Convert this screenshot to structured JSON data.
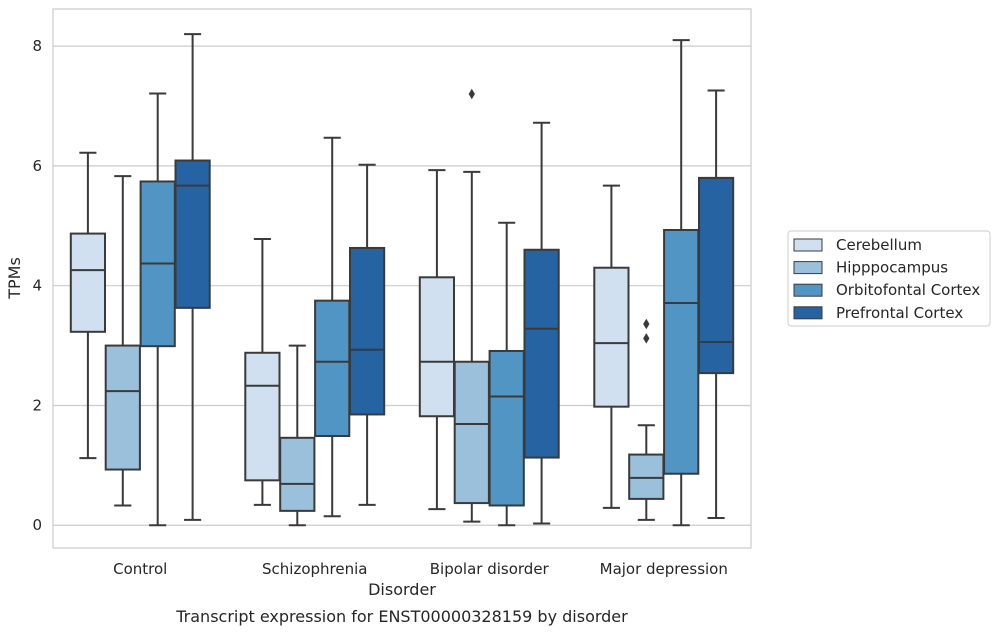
{
  "chart_data": {
    "type": "box",
    "title": "",
    "caption": "Transcript expression for ENST00000328159 by disorder",
    "xlabel": "Disorder",
    "ylabel": "TPMs",
    "ylim": [
      -0.38,
      8.62
    ],
    "yticks": [
      0,
      2,
      4,
      6,
      8
    ],
    "grid": "horizontal",
    "legend_position": "right",
    "categories": [
      "Control",
      "Schizophrenia",
      "Bipolar disorder",
      "Major depression"
    ],
    "series": [
      {
        "name": "Cerebellum",
        "color": "#d0e0f0",
        "boxes": [
          {
            "whisker_low": 1.12,
            "q1": 3.23,
            "median": 4.26,
            "q3": 4.87,
            "whisker_high": 6.22,
            "outliers": []
          },
          {
            "whisker_low": 0.34,
            "q1": 0.75,
            "median": 2.33,
            "q3": 2.88,
            "whisker_high": 4.78,
            "outliers": []
          },
          {
            "whisker_low": 0.27,
            "q1": 1.82,
            "median": 2.73,
            "q3": 4.14,
            "whisker_high": 5.93,
            "outliers": []
          },
          {
            "whisker_low": 0.29,
            "q1": 1.98,
            "median": 3.04,
            "q3": 4.3,
            "whisker_high": 5.67,
            "outliers": []
          }
        ]
      },
      {
        "name": "Hipppocampus",
        "color": "#9ac0dc",
        "boxes": [
          {
            "whisker_low": 0.33,
            "q1": 0.93,
            "median": 2.24,
            "q3": 3.0,
            "whisker_high": 5.83,
            "outliers": []
          },
          {
            "whisker_low": 0.0,
            "q1": 0.24,
            "median": 0.69,
            "q3": 1.46,
            "whisker_high": 3.0,
            "outliers": []
          },
          {
            "whisker_low": 0.06,
            "q1": 0.37,
            "median": 1.69,
            "q3": 2.73,
            "whisker_high": 5.9,
            "outliers": [
              7.2
            ]
          },
          {
            "whisker_low": 0.09,
            "q1": 0.44,
            "median": 0.79,
            "q3": 1.18,
            "whisker_high": 1.67,
            "outliers": [
              3.12,
              3.36
            ]
          }
        ]
      },
      {
        "name": "Orbitofontal Cortex",
        "color": "#5095c4",
        "boxes": [
          {
            "whisker_low": 0.0,
            "q1": 2.99,
            "median": 4.37,
            "q3": 5.74,
            "whisker_high": 7.21,
            "outliers": []
          },
          {
            "whisker_low": 0.15,
            "q1": 1.49,
            "median": 2.73,
            "q3": 3.75,
            "whisker_high": 6.47,
            "outliers": []
          },
          {
            "whisker_low": 0.0,
            "q1": 0.33,
            "median": 2.15,
            "q3": 2.91,
            "whisker_high": 5.05,
            "outliers": []
          },
          {
            "whisker_low": 0.0,
            "q1": 0.86,
            "median": 3.71,
            "q3": 4.93,
            "whisker_high": 8.1,
            "outliers": []
          }
        ]
      },
      {
        "name": "Prefrontal Cortex",
        "color": "#2563a3",
        "boxes": [
          {
            "whisker_low": 0.09,
            "q1": 3.63,
            "median": 5.67,
            "q3": 6.09,
            "whisker_high": 8.2,
            "outliers": []
          },
          {
            "whisker_low": 0.34,
            "q1": 1.85,
            "median": 2.93,
            "q3": 4.63,
            "whisker_high": 6.02,
            "outliers": []
          },
          {
            "whisker_low": 0.03,
            "q1": 1.13,
            "median": 3.28,
            "q3": 4.6,
            "whisker_high": 6.72,
            "outliers": []
          },
          {
            "whisker_low": 0.12,
            "q1": 2.54,
            "median": 3.06,
            "q3": 5.8,
            "whisker_high": 7.26,
            "outliers": []
          }
        ]
      }
    ]
  }
}
